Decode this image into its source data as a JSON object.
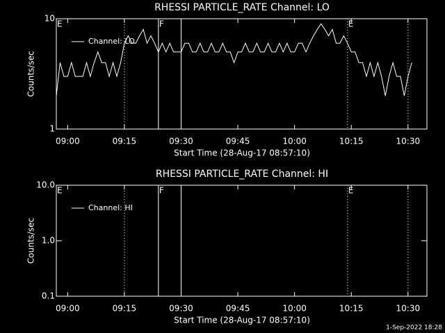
{
  "chart_data": [
    {
      "type": "line",
      "title": "RHESSI PARTICLE_RATE Channel: LO",
      "x_label": "Start Time (28-Aug-17 08:57:10)",
      "y_label": "Counts/sec",
      "log_y": true,
      "legend": "upper left",
      "xlim": [
        "08:57",
        "10:35"
      ],
      "xticks": [
        "09:00",
        "09:15",
        "09:30",
        "09:45",
        "10:00",
        "10:15",
        "10:30"
      ],
      "ylim": [
        1,
        10
      ],
      "yticks": [
        1,
        10
      ],
      "lines": [
        {
          "x": "09:15",
          "style": "dotted"
        },
        {
          "x": "09:24",
          "style": "solid"
        },
        {
          "x": "09:30",
          "style": "solid"
        },
        {
          "x": "10:14",
          "style": "dotted"
        },
        {
          "x": "10:30",
          "style": "dotted"
        }
      ],
      "annotations": [
        {
          "x": "08:57",
          "text": "E"
        },
        {
          "x": "09:24",
          "text": "F"
        },
        {
          "x": "10:14",
          "text": "E"
        }
      ],
      "series": [
        {
          "name": "Channel: LO",
          "color": "#ffffff",
          "x": [
            "08:57",
            "08:58",
            "08:59",
            "09:00",
            "09:01",
            "09:02",
            "09:03",
            "09:04",
            "09:05",
            "09:06",
            "09:07",
            "09:08",
            "09:09",
            "09:10",
            "09:11",
            "09:12",
            "09:13",
            "09:14",
            "09:15",
            "09:16",
            "09:17",
            "09:18",
            "09:19",
            "09:20",
            "09:21",
            "09:22",
            "09:23",
            "09:24",
            "09:25",
            "09:26",
            "09:27",
            "09:28",
            "09:29",
            "09:30",
            "09:31",
            "09:32",
            "09:33",
            "09:34",
            "09:35",
            "09:36",
            "09:37",
            "09:38",
            "09:39",
            "09:40",
            "09:41",
            "09:42",
            "09:43",
            "09:44",
            "09:45",
            "09:46",
            "09:47",
            "09:48",
            "09:49",
            "09:50",
            "09:51",
            "09:52",
            "09:53",
            "09:54",
            "09:55",
            "09:56",
            "09:57",
            "09:58",
            "09:59",
            "10:00",
            "10:01",
            "10:02",
            "10:03",
            "10:04",
            "10:05",
            "10:06",
            "10:07",
            "10:08",
            "10:09",
            "10:10",
            "10:11",
            "10:12",
            "10:13",
            "10:14",
            "10:15",
            "10:16",
            "10:17",
            "10:18",
            "10:19",
            "10:20",
            "10:21",
            "10:22",
            "10:23",
            "10:24",
            "10:25",
            "10:26",
            "10:27",
            "10:28",
            "10:29",
            "10:30",
            "10:31"
          ],
          "values": [
            2,
            4,
            3,
            3,
            4,
            3,
            3,
            3,
            4,
            3,
            4,
            5,
            4,
            4,
            3,
            4,
            3,
            4,
            6,
            7,
            6,
            6,
            7,
            8,
            6,
            7,
            6,
            5,
            6,
            5,
            6,
            5,
            5,
            5,
            6,
            6,
            5,
            5,
            6,
            5,
            5,
            6,
            5,
            5,
            6,
            5,
            5,
            4,
            5,
            5,
            6,
            5,
            5,
            6,
            5,
            5,
            6,
            5,
            5,
            6,
            5,
            6,
            5,
            5,
            6,
            6,
            5,
            6,
            7,
            8,
            9,
            8,
            7,
            8,
            6,
            6,
            7,
            6,
            5,
            5,
            4,
            4,
            3,
            4,
            3,
            4,
            3,
            2,
            3,
            4,
            3,
            3,
            2,
            3,
            4
          ]
        }
      ]
    },
    {
      "type": "line",
      "title": "RHESSI PARTICLE_RATE Channel: HI",
      "x_label": "Start Time (28-Aug-17 08:57:10)",
      "y_label": "Counts/sec",
      "log_y": true,
      "legend": "upper left",
      "xlim": [
        "08:57",
        "10:35"
      ],
      "xticks": [
        "09:00",
        "09:15",
        "09:30",
        "09:45",
        "10:00",
        "10:15",
        "10:30"
      ],
      "ylim": [
        0.1,
        10
      ],
      "yticks": [
        0.1,
        {
          "value": 1,
          "label": "1.0"
        },
        {
          "value": 10,
          "label": "10.0"
        }
      ],
      "lines": [
        {
          "x": "09:15",
          "style": "dotted"
        },
        {
          "x": "09:24",
          "style": "solid"
        },
        {
          "x": "09:30",
          "style": "solid"
        },
        {
          "x": "10:14",
          "style": "dotted"
        },
        {
          "x": "10:30",
          "style": "dotted"
        }
      ],
      "annotations": [
        {
          "x": "08:57",
          "text": "E"
        },
        {
          "x": "09:24",
          "text": "F"
        },
        {
          "x": "10:14",
          "text": "E"
        }
      ],
      "series": [
        {
          "name": "Channel: HI",
          "color": "#ffffff",
          "x": [],
          "values": []
        }
      ]
    }
  ],
  "footer": "1-Sep-2022 18:28"
}
